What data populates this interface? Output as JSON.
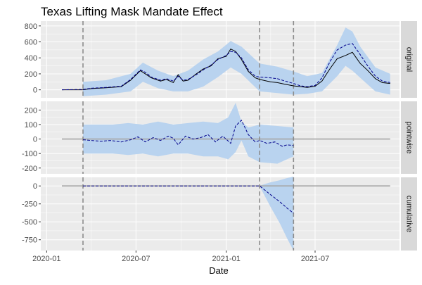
{
  "chart_data": {
    "type": "line",
    "title": "Texas Lifting Mask Mandate Effect",
    "xlabel": "Date",
    "x_ticks": [
      "2020-01",
      "2020-07",
      "2021-01",
      "2021-07"
    ],
    "x_range": [
      "2019-12-20",
      "2021-12-20"
    ],
    "vlines": [
      "2020-03-15",
      "2021-03-10",
      "2021-05-18"
    ],
    "colors": {
      "band": "#b9d3ef",
      "panel_bg": "#ebebeb",
      "grid": "#ffffff",
      "strip_bg": "#d9d9d9",
      "zero_line": "#a6a6a6",
      "vline": "#8c8c8c",
      "actual": "#000000",
      "predicted": "#00008b"
    },
    "panels": [
      {
        "strip": "original",
        "ylim": [
          -100,
          860
        ],
        "y_ticks": [
          0,
          200,
          400,
          600,
          800
        ],
        "y_tick_labels": [
          "0",
          "200",
          "400",
          "600",
          "800"
        ],
        "actual": {
          "x": [
            "2020-02-01",
            "2020-03-15",
            "2020-04-01",
            "2020-05-01",
            "2020-06-01",
            "2020-06-20",
            "2020-07-10",
            "2020-07-20",
            "2020-08-01",
            "2020-08-20",
            "2020-09-01",
            "2020-09-15",
            "2020-09-25",
            "2020-10-05",
            "2020-10-15",
            "2020-11-01",
            "2020-11-15",
            "2020-12-01",
            "2020-12-15",
            "2021-01-01",
            "2021-01-10",
            "2021-01-20",
            "2021-02-01",
            "2021-02-15",
            "2021-03-01",
            "2021-03-10",
            "2021-04-01",
            "2021-04-15",
            "2021-05-01",
            "2021-05-18",
            "2021-06-01",
            "2021-06-15",
            "2021-07-01",
            "2021-07-15",
            "2021-08-01",
            "2021-08-15",
            "2021-09-01",
            "2021-09-15",
            "2021-10-01",
            "2021-10-15",
            "2021-11-01",
            "2021-11-15",
            "2021-12-01"
          ],
          "y": [
            0,
            0,
            15,
            25,
            40,
            120,
            240,
            200,
            150,
            110,
            130,
            90,
            190,
            110,
            120,
            200,
            260,
            300,
            390,
            420,
            510,
            480,
            380,
            230,
            150,
            130,
            100,
            90,
            70,
            50,
            40,
            30,
            45,
            110,
            270,
            390,
            430,
            470,
            330,
            250,
            140,
            90,
            80
          ]
        },
        "predicted": {
          "x": [
            "2020-02-01",
            "2020-03-15",
            "2020-04-01",
            "2020-05-01",
            "2020-06-01",
            "2020-06-20",
            "2020-07-10",
            "2020-07-20",
            "2020-08-01",
            "2020-08-20",
            "2020-09-01",
            "2020-09-15",
            "2020-09-25",
            "2020-10-05",
            "2020-10-15",
            "2020-11-01",
            "2020-11-15",
            "2020-12-01",
            "2020-12-15",
            "2021-01-01",
            "2021-01-10",
            "2021-01-20",
            "2021-02-01",
            "2021-02-15",
            "2021-03-01",
            "2021-03-10",
            "2021-04-01",
            "2021-04-15",
            "2021-05-01",
            "2021-05-18",
            "2021-06-01",
            "2021-06-15",
            "2021-07-01",
            "2021-07-15",
            "2021-08-01",
            "2021-08-15",
            "2021-09-01",
            "2021-09-15",
            "2021-10-01",
            "2021-10-15",
            "2021-11-01",
            "2021-11-15",
            "2021-12-01"
          ],
          "y": [
            0,
            5,
            20,
            30,
            45,
            130,
            250,
            220,
            160,
            120,
            140,
            110,
            170,
            120,
            130,
            190,
            250,
            310,
            380,
            430,
            480,
            470,
            400,
            250,
            170,
            160,
            150,
            140,
            110,
            80,
            50,
            40,
            55,
            150,
            360,
            500,
            560,
            580,
            440,
            310,
            170,
            110,
            90
          ]
        },
        "band": {
          "x": [
            "2020-03-15",
            "2020-05-01",
            "2020-06-20",
            "2020-07-15",
            "2020-08-15",
            "2020-09-15",
            "2020-10-15",
            "2020-11-15",
            "2020-12-15",
            "2021-01-10",
            "2021-02-01",
            "2021-03-10",
            "2021-04-15",
            "2021-05-18",
            "2021-06-15",
            "2021-07-15",
            "2021-08-15",
            "2021-09-01",
            "2021-09-15",
            "2021-10-01",
            "2021-11-01",
            "2021-12-01"
          ],
          "lower": [
            -80,
            -60,
            -20,
            100,
            20,
            -20,
            -20,
            40,
            160,
            280,
            200,
            -20,
            -40,
            -60,
            -50,
            -20,
            170,
            300,
            240,
            150,
            -20,
            -60
          ],
          "upper": [
            100,
            120,
            200,
            340,
            240,
            170,
            240,
            380,
            480,
            610,
            540,
            330,
            290,
            230,
            170,
            210,
            560,
            780,
            730,
            540,
            280,
            200
          ]
        }
      },
      {
        "strip": "pointwise",
        "ylim": [
          -240,
          260
        ],
        "y_ticks": [
          -200,
          -100,
          0,
          100,
          200
        ],
        "y_tick_labels": [
          "-200",
          "-100",
          "0",
          "100",
          "200"
        ],
        "zero_line": [
          0,
          0
        ],
        "predicted": {
          "x": [
            "2020-03-15",
            "2020-04-01",
            "2020-04-20",
            "2020-05-10",
            "2020-06-01",
            "2020-06-20",
            "2020-07-05",
            "2020-07-20",
            "2020-08-05",
            "2020-08-20",
            "2020-09-05",
            "2020-09-15",
            "2020-09-25",
            "2020-10-10",
            "2020-10-25",
            "2020-11-10",
            "2020-11-25",
            "2020-12-10",
            "2020-12-25",
            "2021-01-10",
            "2021-01-20",
            "2021-02-01",
            "2021-02-15",
            "2021-03-01",
            "2021-03-10",
            "2021-03-25",
            "2021-04-10",
            "2021-04-25",
            "2021-05-05",
            "2021-05-18"
          ],
          "y": [
            -5,
            -10,
            -15,
            -10,
            -20,
            -5,
            15,
            -20,
            10,
            -10,
            20,
            5,
            -40,
            20,
            0,
            10,
            30,
            -20,
            20,
            -30,
            90,
            130,
            30,
            -20,
            -10,
            -30,
            -20,
            -50,
            -40,
            -45
          ]
        },
        "band": {
          "x": [
            "2020-03-15",
            "2020-04-15",
            "2020-05-15",
            "2020-06-15",
            "2020-07-15",
            "2020-08-15",
            "2020-09-15",
            "2020-10-15",
            "2020-11-15",
            "2020-12-15",
            "2021-01-05",
            "2021-01-20",
            "2021-02-01",
            "2021-02-15",
            "2021-03-10",
            "2021-04-15",
            "2021-05-18"
          ],
          "lower": [
            -100,
            -100,
            -100,
            -110,
            -100,
            -120,
            -100,
            -100,
            -120,
            -120,
            -140,
            -90,
            -10,
            -120,
            -160,
            -170,
            -120
          ],
          "upper": [
            100,
            100,
            100,
            110,
            100,
            120,
            100,
            110,
            120,
            110,
            150,
            250,
            120,
            80,
            100,
            90,
            80
          ]
        }
      },
      {
        "strip": "cumulative",
        "ylim": [
          -900,
          120
        ],
        "y_ticks": [
          -750,
          -500,
          -250,
          0
        ],
        "y_tick_labels": [
          "-750",
          "-500",
          "-250",
          "0"
        ],
        "zero_line": [
          0,
          0
        ],
        "predicted": {
          "x": [
            "2020-03-15",
            "2021-03-10",
            "2021-04-01",
            "2021-04-20",
            "2021-05-05",
            "2021-05-18"
          ],
          "y": [
            0,
            0,
            -120,
            -220,
            -310,
            -380
          ]
        },
        "band": {
          "x": [
            "2020-03-15",
            "2021-03-10",
            "2021-04-01",
            "2021-04-20",
            "2021-05-05",
            "2021-05-18"
          ],
          "lower": [
            -5,
            -5,
            -290,
            -520,
            -730,
            -900
          ],
          "upper": [
            5,
            5,
            50,
            80,
            110,
            130
          ]
        }
      }
    ]
  }
}
